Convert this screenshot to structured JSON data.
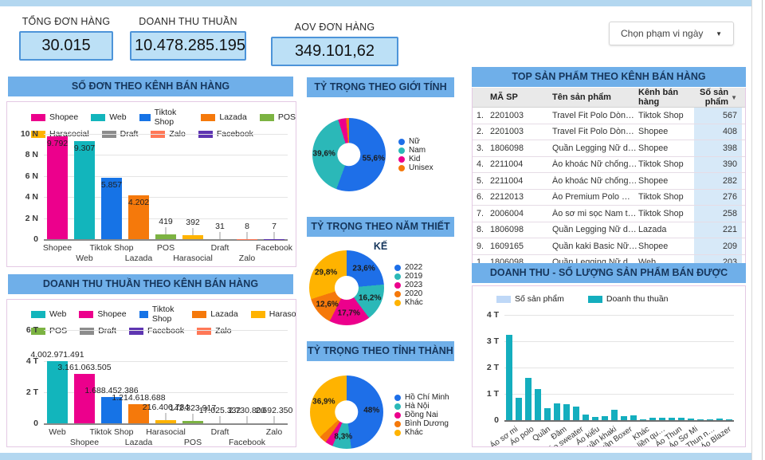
{
  "header": {
    "kpis": [
      {
        "label": "TỔNG ĐƠN HÀNG",
        "value": "30.015"
      },
      {
        "label": "DOANH THU THUẦN",
        "value": "10.478.285.195"
      },
      {
        "label": "AOV ĐƠN HÀNG",
        "value": "349.101,62"
      }
    ],
    "date_filter_label": "Chọn phạm vi ngày",
    "date_filter_caret": "▼"
  },
  "top_products": {
    "title": "TOP SẢN PHẨM THEO KÊNH BÁN HÀNG",
    "headers": [
      "MÃ SP",
      "Tên sản phẩm",
      "Kênh bán hàng",
      "Số sản phẩm"
    ],
    "sort_icon": "▼",
    "rows": [
      {
        "rank": "1.",
        "code": "2201003",
        "name": "Travel Fit Polo Dòn…",
        "channel": "Tiktok Shop",
        "qty": "567"
      },
      {
        "rank": "2.",
        "code": "2201003",
        "name": "Travel Fit Polo Dòn…",
        "channel": "Shopee",
        "qty": "408"
      },
      {
        "rank": "3.",
        "code": "1806098",
        "name": "Quần Legging Nữ d…",
        "channel": "Shopee",
        "qty": "398"
      },
      {
        "rank": "4.",
        "code": "2211004",
        "name": "Áo khoác Nữ chống…",
        "channel": "Tiktok Shop",
        "qty": "390"
      },
      {
        "rank": "5.",
        "code": "2211004",
        "name": "Áo khoác Nữ chống…",
        "channel": "Shopee",
        "qty": "282"
      },
      {
        "rank": "6.",
        "code": "2212013",
        "name": "Áo Premium Polo …",
        "channel": "Tiktok Shop",
        "qty": "276"
      },
      {
        "rank": "7.",
        "code": "2006004",
        "name": "Áo sơ mi sọc Nam t…",
        "channel": "Tiktok Shop",
        "qty": "258"
      },
      {
        "rank": "8.",
        "code": "1806098",
        "name": "Quần Legging Nữ d…",
        "channel": "Lazada",
        "qty": "221"
      },
      {
        "rank": "9.",
        "code": "1609165",
        "name": "Quần kaki Basic Nữ…",
        "channel": "Shopee",
        "qty": "209"
      },
      {
        "rank": "1…",
        "code": "1806098",
        "name": "Quần Legging Nữ d…",
        "channel": "Web",
        "qty": "203"
      }
    ]
  },
  "chart_data": [
    {
      "id": "orders_by_channel",
      "type": "bar",
      "title": "SỐ ĐƠN THEO KÊNH BÁN HÀNG",
      "categories": [
        "Shopee",
        "Web",
        "Tiktok Shop",
        "Lazada",
        "POS",
        "Harasocial",
        "Draft",
        "Zalo",
        "Facebook"
      ],
      "values": [
        9792,
        9307,
        5857,
        4202,
        419,
        392,
        31,
        8,
        7
      ],
      "value_labels": [
        "9.792",
        "9.307",
        "5.857",
        "4.202",
        "419",
        "392",
        "31",
        "8",
        "7"
      ],
      "colors": [
        "#EC008C",
        "#12B5BC",
        "#1673E6",
        "#F5790B",
        "#7CB342",
        "#FFB300",
        "#8C8C8C",
        "#FF7857",
        "#5E35B1"
      ],
      "ylim": [
        0,
        10000
      ],
      "yticks": [
        "10 N",
        "8 N",
        "6 N",
        "4 N",
        "2 N",
        "0"
      ],
      "legend_rows": [
        5,
        4
      ],
      "grid": true
    },
    {
      "id": "gender_share",
      "type": "pie",
      "donut": true,
      "title": "TỶ TRỌNG THEO GIỚI TÍNH",
      "labels": [
        "Nữ",
        "Nam",
        "Kid",
        "Unisex"
      ],
      "values": [
        55.6,
        39.6,
        3.5,
        1.3
      ],
      "pct_labels": [
        "55,6%",
        "39,6%",
        "",
        ""
      ],
      "colors": [
        "#1E6FE8",
        "#2BB8B8",
        "#EC008C",
        "#F5790B"
      ],
      "legend_position": "right"
    },
    {
      "id": "revenue_by_channel",
      "type": "bar",
      "title": "DOANH THU THUẦN THEO KÊNH BÁN HÀNG",
      "categories": [
        "Web",
        "Shopee",
        "Tiktok Shop",
        "Lazada",
        "Harasocial",
        "POS",
        "Draft",
        "Facebook",
        "Zalo"
      ],
      "values": [
        4002971491,
        3161063505,
        1688452386,
        1214618688,
        216406784,
        142323917,
        17025332,
        2730800,
        2692350
      ],
      "value_labels": [
        "4.002.971.491",
        "3.161.063.505",
        "1.688.452.386",
        "1.214.618.688",
        "216.406.784",
        "142.323.917",
        "17.025.332",
        "2.730.800",
        "2.692.350"
      ],
      "colors": [
        "#12B5BC",
        "#EC008C",
        "#1673E6",
        "#F5790B",
        "#FFB300",
        "#7CB342",
        "#8C8C8C",
        "#5E35B1",
        "#FF7857"
      ],
      "ylim": [
        0,
        6000000000
      ],
      "yticks": [
        "6 T",
        "4 T",
        "2 T",
        "0"
      ],
      "legend_rows": [
        5,
        4
      ],
      "grid": true
    },
    {
      "id": "design_year_share",
      "type": "pie",
      "donut": true,
      "title": "TỶ TRỌNG THEO NĂM THIẾT KẾ",
      "labels": [
        "2022",
        "2019",
        "2023",
        "2020",
        "Khác"
      ],
      "values": [
        23.6,
        16.2,
        17.7,
        12.6,
        29.8
      ],
      "pct_labels": [
        "23,6%",
        "16,2%",
        "17,7%",
        "12,6%",
        "29,8%"
      ],
      "colors": [
        "#1E6FE8",
        "#2BB8B8",
        "#EC008C",
        "#F5790B",
        "#FFB300"
      ],
      "legend_position": "right"
    },
    {
      "id": "province_share",
      "type": "pie",
      "donut": true,
      "title": "TỶ TRỌNG THEO TỈNH THÀNH",
      "labels": [
        "Hồ Chí Minh",
        "Hà Nội",
        "Đồng Nai",
        "Bình Dương",
        "Khác"
      ],
      "values": [
        48,
        8.3,
        3.4,
        3.4,
        36.9
      ],
      "pct_labels": [
        "48%",
        "8,3%",
        "",
        "",
        "36,9%"
      ],
      "colors": [
        "#1E6FE8",
        "#2BB8B8",
        "#EC008C",
        "#F5790B",
        "#FFB300"
      ],
      "legend_position": "right"
    },
    {
      "id": "revenue_qty_by_product",
      "type": "bar",
      "title": "DOANH THU - SỐ LƯỢNG SẢN PHẨM BÁN ĐƯỢC",
      "series": [
        {
          "name": "Số sản phẩm",
          "color": "#BFD8F7"
        },
        {
          "name": "Doanh thu thuần",
          "color": "#14AEBE"
        }
      ],
      "visible_labels": [
        "Áo sơ mi",
        "Áo polo",
        "Quần",
        "Đầm",
        "Áo sweater",
        "Áo kiểu",
        "Quần khaki",
        "Quần Boxer",
        "Khác",
        "Áo liền qu…",
        "Áo Thun",
        "Áo Sơ Mi",
        "Áo Thun n…",
        "Áo Blazer"
      ],
      "unit": "tỷ (T)",
      "values": [
        3.25,
        0.85,
        1.6,
        1.18,
        0.45,
        0.63,
        0.6,
        0.52,
        0.22,
        0.13,
        0.15,
        0.38,
        0.15,
        0.19,
        0.02,
        0.1,
        0.08,
        0.08,
        0.08,
        0.06,
        0.03,
        0.02,
        0.05,
        0.02
      ],
      "ylim": [
        0,
        4
      ],
      "yticks": [
        "4 T",
        "3 T",
        "2 T",
        "1 T",
        "0"
      ],
      "grid": true
    }
  ]
}
